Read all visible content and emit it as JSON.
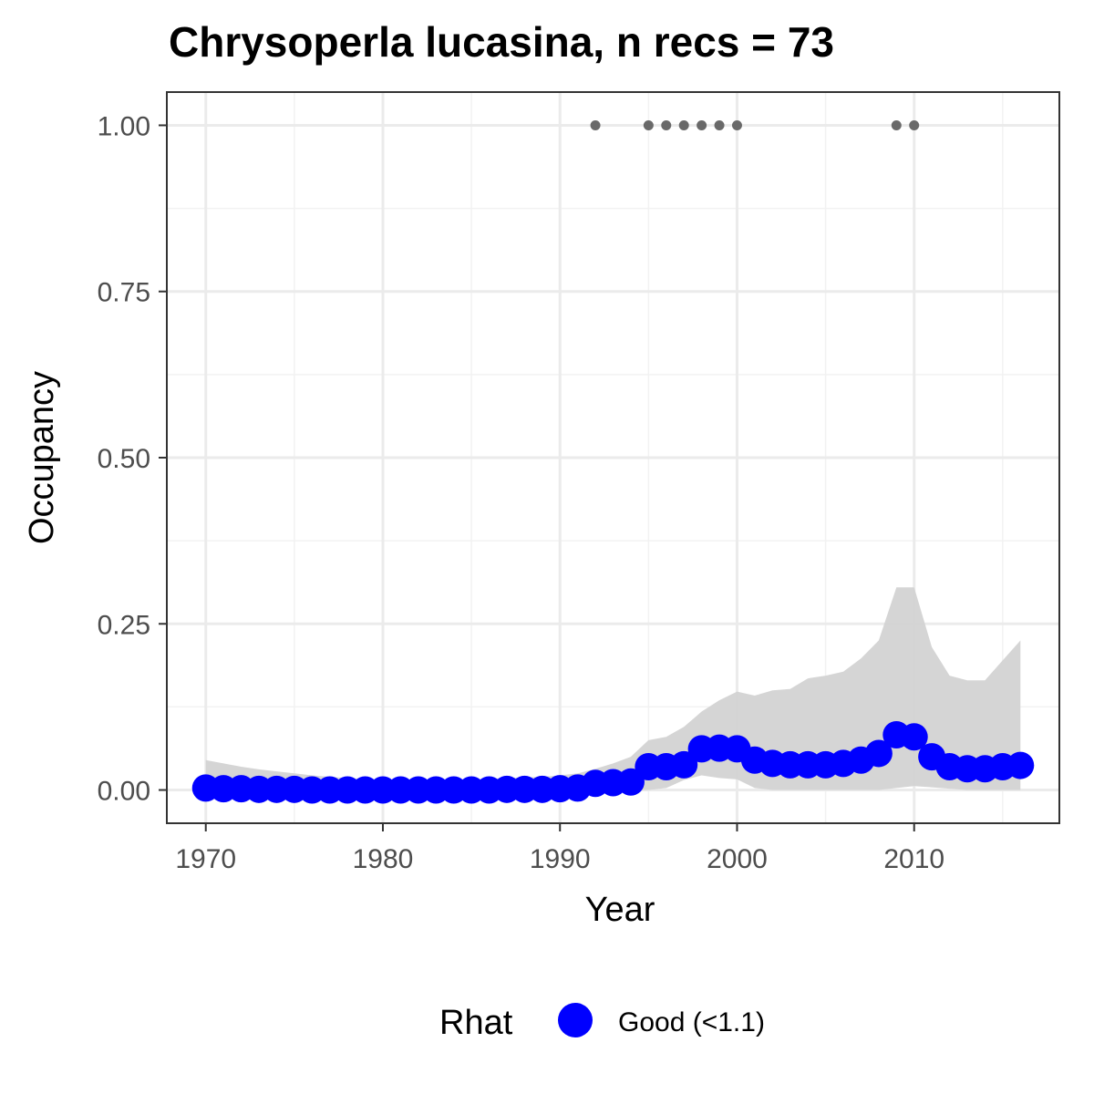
{
  "chart_data": {
    "type": "line",
    "title": "Chrysoperla lucasina, n recs = 73",
    "xlabel": "Year",
    "ylabel": "Occupancy",
    "xlim": [
      1967.8,
      2018.2
    ],
    "ylim": [
      -0.05,
      1.05
    ],
    "x_ticks": [
      1970,
      1980,
      1990,
      2000,
      2010
    ],
    "x_tick_labels": [
      "1970",
      "1980",
      "1990",
      "2000",
      "2010"
    ],
    "y_ticks": [
      0,
      0.25,
      0.5,
      0.75,
      1.0
    ],
    "y_tick_labels": [
      "0.00",
      "0.25",
      "0.50",
      "0.75",
      "1.00"
    ],
    "grid": true,
    "years": [
      1970,
      1971,
      1972,
      1973,
      1974,
      1975,
      1976,
      1977,
      1978,
      1979,
      1980,
      1981,
      1982,
      1983,
      1984,
      1985,
      1986,
      1987,
      1988,
      1989,
      1990,
      1991,
      1992,
      1993,
      1994,
      1995,
      1996,
      1997,
      1998,
      1999,
      2000,
      2001,
      2002,
      2003,
      2004,
      2005,
      2006,
      2007,
      2008,
      2009,
      2010,
      2011,
      2012,
      2013,
      2014,
      2015,
      2016
    ],
    "series": [
      {
        "kind": "occupancy_mean",
        "color": "#0000ff",
        "values": [
          0.003,
          0.002,
          0.002,
          0.001,
          0.001,
          0.001,
          0.0,
          0.0,
          0.0,
          0.0,
          0.0,
          0.0,
          0.0,
          0.0,
          0.0,
          0.0,
          0.0,
          0.001,
          0.001,
          0.001,
          0.002,
          0.003,
          0.01,
          0.011,
          0.012,
          0.035,
          0.035,
          0.038,
          0.062,
          0.063,
          0.062,
          0.045,
          0.04,
          0.038,
          0.038,
          0.038,
          0.04,
          0.045,
          0.055,
          0.083,
          0.08,
          0.05,
          0.035,
          0.032,
          0.032,
          0.035,
          0.037
        ]
      },
      {
        "kind": "credible_interval_lower",
        "color": "#d3d3d3",
        "values": [
          0.0,
          0.0,
          0.0,
          0.0,
          0.0,
          0.0,
          0.0,
          0.0,
          0.0,
          0.0,
          0.0,
          0.0,
          0.0,
          0.0,
          0.0,
          0.0,
          0.0,
          0.0,
          0.0,
          0.0,
          0.0,
          0.0,
          0.0,
          0.0,
          0.0,
          0.0,
          0.003,
          0.015,
          0.022,
          0.018,
          0.016,
          0.003,
          0.0,
          0.0,
          0.0,
          0.0,
          0.0,
          0.0,
          0.0,
          0.003,
          0.006,
          0.004,
          0.002,
          0.0,
          0.0,
          0.0,
          0.0
        ]
      },
      {
        "kind": "credible_interval_upper",
        "color": "#d3d3d3",
        "values": [
          0.045,
          0.04,
          0.035,
          0.031,
          0.028,
          0.025,
          0.022,
          0.02,
          0.018,
          0.017,
          0.016,
          0.015,
          0.015,
          0.015,
          0.015,
          0.016,
          0.017,
          0.018,
          0.019,
          0.02,
          0.022,
          0.025,
          0.032,
          0.04,
          0.05,
          0.075,
          0.08,
          0.095,
          0.118,
          0.135,
          0.148,
          0.142,
          0.15,
          0.152,
          0.168,
          0.172,
          0.178,
          0.198,
          0.225,
          0.305,
          0.305,
          0.215,
          0.172,
          0.165,
          0.165,
          0.195,
          0.225
        ]
      },
      {
        "kind": "observations",
        "color": "#696969",
        "x": [
          1992,
          1995,
          1996,
          1997,
          1998,
          1999,
          2000,
          2009,
          2010
        ],
        "values": [
          1,
          1,
          1,
          1,
          1,
          1,
          1,
          1,
          1
        ]
      }
    ],
    "legend": {
      "position": "bottom",
      "title": "Rhat",
      "items": [
        {
          "label": "Good (<1.1)",
          "color": "#0000ff"
        }
      ]
    }
  }
}
